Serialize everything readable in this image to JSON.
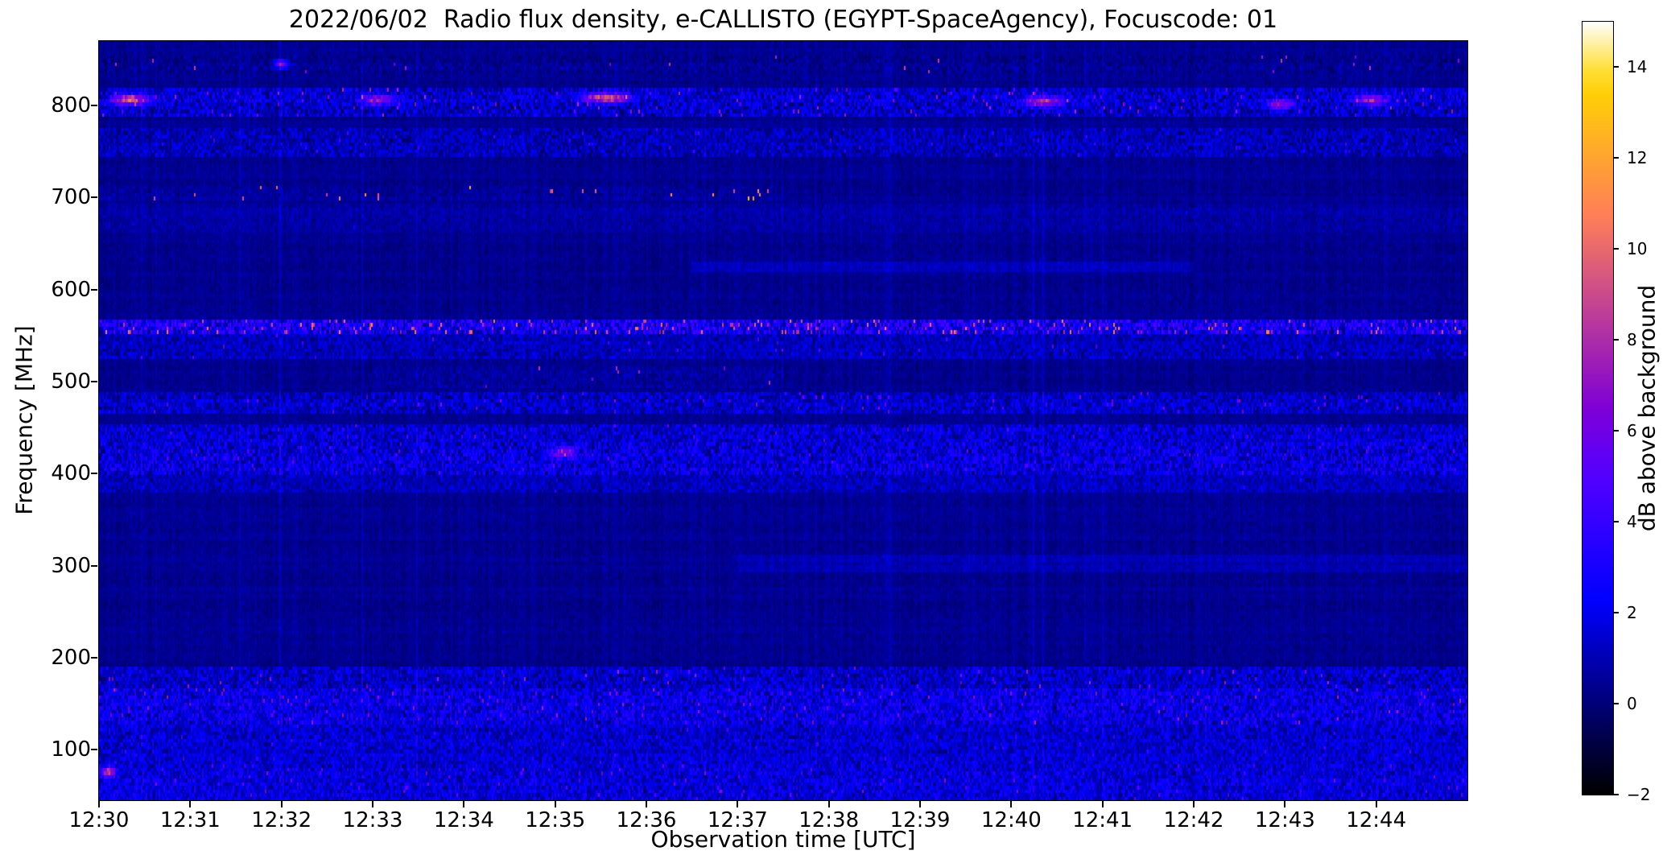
{
  "title": "2022/06/02  Radio flux density, e-CALLISTO (EGYPT-SpaceAgency), Focuscode: 01",
  "xlabel": "Observation time [UTC]",
  "ylabel": "Frequency [MHz]",
  "colorbar": {
    "label": "dB above background",
    "tick_values": [
      -2,
      0,
      2,
      4,
      6,
      8,
      10,
      12,
      14
    ],
    "tick_labels": [
      "−2",
      "0",
      "2",
      "4",
      "6",
      "8",
      "10",
      "12",
      "14"
    ],
    "vmin": -2,
    "vmax": 15,
    "colormap": "gnuplot2"
  },
  "chart_data": {
    "type": "heatmap",
    "title": "2022/06/02  Radio flux density, e-CALLISTO (EGYPT-SpaceAgency), Focuscode: 01",
    "xlabel": "Observation time [UTC]",
    "ylabel": "Frequency [MHz]",
    "x_tick_labels": [
      "12:30",
      "12:31",
      "12:32",
      "12:33",
      "12:34",
      "12:35",
      "12:36",
      "12:37",
      "12:38",
      "12:39",
      "12:40",
      "12:41",
      "12:42",
      "12:43",
      "12:44"
    ],
    "x_tick_minutes": [
      0,
      1,
      2,
      3,
      4,
      5,
      6,
      7,
      8,
      9,
      10,
      11,
      12,
      13,
      14
    ],
    "y_tick_values": [
      100,
      200,
      300,
      400,
      500,
      600,
      700,
      800
    ],
    "time_range_minutes": [
      0,
      15
    ],
    "freq_range_mhz": [
      45,
      870
    ],
    "value_range_db": [
      -2,
      15
    ],
    "colormap": "gnuplot2",
    "background": {
      "base_db": 0.4,
      "noise_db": 0.38,
      "column_mod_db": 0.5,
      "row_mod_db": 0.3,
      "bright_column_prob": 0.03
    },
    "bands": [
      {
        "f": [
          836,
          854
        ],
        "base": 0.0,
        "speckle": 0.6,
        "spike_prob": 0.003,
        "spike_db": 9,
        "t": [
          0,
          15
        ]
      },
      {
        "f": [
          786,
          818
        ],
        "base": 1.0,
        "speckle": 1.6,
        "spike_prob": 0.02,
        "spike_db": 8,
        "t": [
          0,
          15
        ]
      },
      {
        "f": [
          744,
          774
        ],
        "base": 0.7,
        "speckle": 1.2,
        "spike_prob": 0.008,
        "spike_db": 5,
        "t": [
          0,
          15
        ]
      },
      {
        "f": [
          697,
          713
        ],
        "base": 0.2,
        "speckle": 0.5,
        "spike_prob": 0.012,
        "spike_db": 13,
        "t": [
          0,
          7.5
        ]
      },
      {
        "f": [
          660,
          695
        ],
        "base": 0.3,
        "speckle": 0.4,
        "spike_prob": 0.001,
        "spike_db": 3,
        "t": [
          0,
          15
        ]
      },
      {
        "f": [
          618,
          630
        ],
        "base": 0.8,
        "speckle": 0.3,
        "spike_prob": 0.0,
        "spike_db": 0,
        "t": [
          6.5,
          12
        ]
      },
      {
        "f": [
          552,
          568
        ],
        "base": 2.2,
        "speckle": 2.4,
        "spike_prob": 0.05,
        "spike_db": 11,
        "t": [
          0,
          15
        ]
      },
      {
        "f": [
          524,
          550
        ],
        "base": 0.7,
        "speckle": 1.0,
        "spike_prob": 0.006,
        "spike_db": 6,
        "t": [
          0,
          15
        ]
      },
      {
        "f": [
          494,
          516
        ],
        "base": 0.3,
        "speckle": 0.6,
        "spike_prob": 0.005,
        "spike_db": 9,
        "t": [
          3,
          7.5
        ]
      },
      {
        "f": [
          464,
          490
        ],
        "base": 0.9,
        "speckle": 1.4,
        "spike_prob": 0.012,
        "spike_db": 7,
        "t": [
          0,
          15
        ]
      },
      {
        "f": [
          434,
          454
        ],
        "base": 1.1,
        "speckle": 1.5,
        "spike_prob": 0.008,
        "spike_db": 6,
        "t": [
          0,
          15
        ]
      },
      {
        "f": [
          398,
          434
        ],
        "base": 1.3,
        "speckle": 1.7,
        "spike_prob": 0.01,
        "spike_db": 6,
        "t": [
          0,
          15
        ]
      },
      {
        "f": [
          378,
          398
        ],
        "base": 0.6,
        "speckle": 0.9,
        "spike_prob": 0.003,
        "spike_db": 4,
        "t": [
          0,
          15
        ]
      },
      {
        "f": [
          294,
          314
        ],
        "base": 0.5,
        "speckle": 0.3,
        "spike_prob": 0.0,
        "spike_db": 0,
        "t": [
          7,
          15
        ]
      },
      {
        "f": [
          166,
          190
        ],
        "base": 0.9,
        "speckle": 1.5,
        "spike_prob": 0.01,
        "spike_db": 8,
        "t": [
          0,
          15
        ]
      },
      {
        "f": [
          126,
          166
        ],
        "base": 1.6,
        "speckle": 1.7,
        "spike_prob": 0.015,
        "spike_db": 8,
        "t": [
          0,
          15
        ]
      },
      {
        "f": [
          84,
          126
        ],
        "base": 1.1,
        "speckle": 1.3,
        "spike_prob": 0.006,
        "spike_db": 5,
        "t": [
          0,
          15
        ]
      },
      {
        "f": [
          45,
          84
        ],
        "base": 1.3,
        "speckle": 1.5,
        "spike_prob": 0.01,
        "spike_db": 7,
        "t": [
          0,
          15
        ]
      }
    ],
    "hotspots": [
      {
        "t": 0.35,
        "f": 806,
        "amp": 8,
        "sigma_t": 0.15,
        "sigma_f": 4
      },
      {
        "t": 3.05,
        "f": 806,
        "amp": 6,
        "sigma_t": 0.12,
        "sigma_f": 4
      },
      {
        "t": 5.55,
        "f": 808,
        "amp": 8,
        "sigma_t": 0.18,
        "sigma_f": 4
      },
      {
        "t": 10.35,
        "f": 804,
        "amp": 7,
        "sigma_t": 0.15,
        "sigma_f": 4
      },
      {
        "t": 12.95,
        "f": 801,
        "amp": 6,
        "sigma_t": 0.1,
        "sigma_f": 4
      },
      {
        "t": 13.95,
        "f": 806,
        "amp": 6,
        "sigma_t": 0.12,
        "sigma_f": 4
      },
      {
        "t": 2.0,
        "f": 845,
        "amp": 7,
        "sigma_t": 0.05,
        "sigma_f": 3
      },
      {
        "t": 5.1,
        "f": 423,
        "amp": 5,
        "sigma_t": 0.1,
        "sigma_f": 5
      },
      {
        "t": 0.1,
        "f": 76,
        "amp": 7,
        "sigma_t": 0.06,
        "sigma_f": 4
      }
    ]
  }
}
